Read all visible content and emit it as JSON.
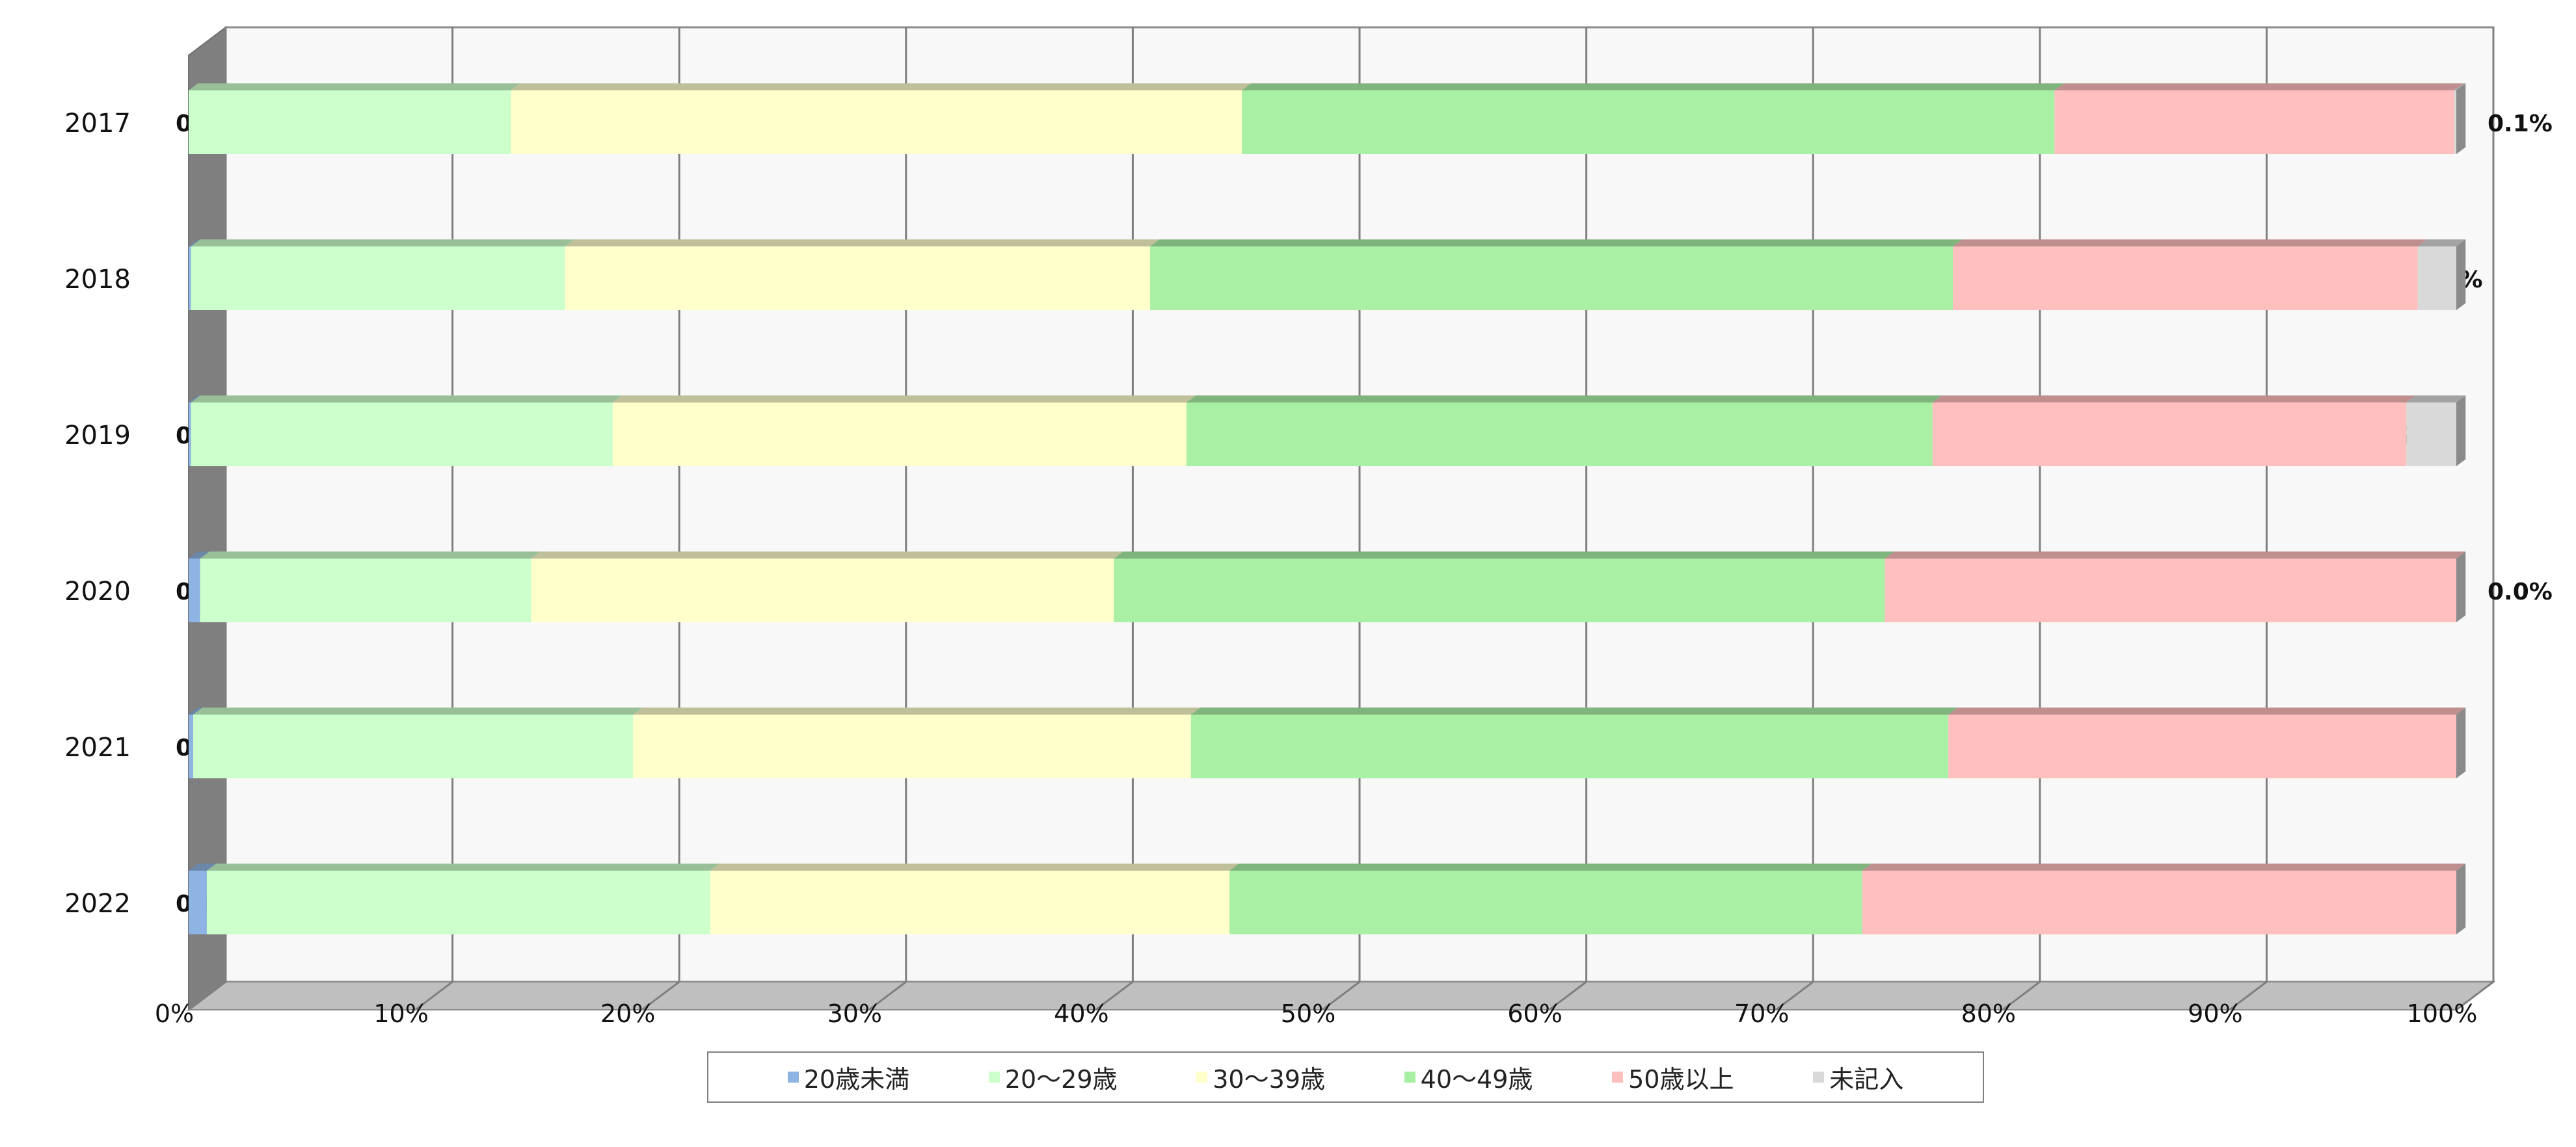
{
  "chart_data": {
    "type": "bar",
    "orientation": "horizontal",
    "stacked": "percent",
    "categories": [
      "2017",
      "2018",
      "2019",
      "2020",
      "2021",
      "2022"
    ],
    "series": [
      {
        "name": "20歳未満",
        "color": "#8db4e2",
        "values": [
          0.0,
          0.1,
          0.1,
          0.5,
          0.2,
          0.8
        ],
        "labels": [
          "0.0%",
          "",
          "0.1%",
          "0.5%",
          "0.2%",
          "0.8%"
        ]
      },
      {
        "name": "20～29歳",
        "color": "#ccffcc",
        "values": [
          14.2,
          16.5,
          18.6,
          14.6,
          19.4,
          22.2
        ],
        "labels": [
          "14.2%",
          "16.5%",
          "18.6%",
          "14.6%",
          "19.4%",
          "22.2%"
        ]
      },
      {
        "name": "30～39歳",
        "color": "#ffffcc",
        "values": [
          32.2,
          25.8,
          25.3,
          25.7,
          24.6,
          22.9
        ],
        "labels": [
          "32.2%",
          "25.8%",
          "25.3%",
          "25.7%",
          "24.6%",
          "22.9%"
        ]
      },
      {
        "name": "40～49歳",
        "color": "#a9f0a5",
        "values": [
          35.8,
          35.4,
          32.9,
          34.0,
          33.4,
          27.9
        ],
        "labels": [
          "35.8%",
          "35.4%",
          "32.9%",
          "34.0%",
          "33.4%",
          "27.9%"
        ]
      },
      {
        "name": "50歳以上",
        "color": "#ffbfbf",
        "values": [
          17.6,
          20.5,
          20.9,
          25.2,
          22.4,
          26.2
        ],
        "labels": [
          "17.6%",
          "20.5%",
          "20.9%",
          "25.2%",
          "22.4%",
          "26.2%"
        ]
      },
      {
        "name": "未記入",
        "color": "#d9d9d9",
        "values": [
          0.1,
          1.7,
          2.2,
          0.0,
          0.0,
          0.0
        ],
        "labels": [
          "0.1%",
          "1.7%",
          "2.2%",
          "0.0%",
          "",
          ""
        ]
      }
    ],
    "x_ticks": [
      "0%",
      "10%",
      "20%",
      "30%",
      "40%",
      "50%",
      "60%",
      "70%",
      "80%",
      "90%",
      "100%"
    ],
    "xlim": [
      0,
      100
    ],
    "grid": true,
    "legend_position": "bottom",
    "colors": {
      "wall": "#f8f8f8",
      "side_wall": "#7f7f7f",
      "floor": "#bfbfbf",
      "grid": "#7f7f7f"
    }
  }
}
